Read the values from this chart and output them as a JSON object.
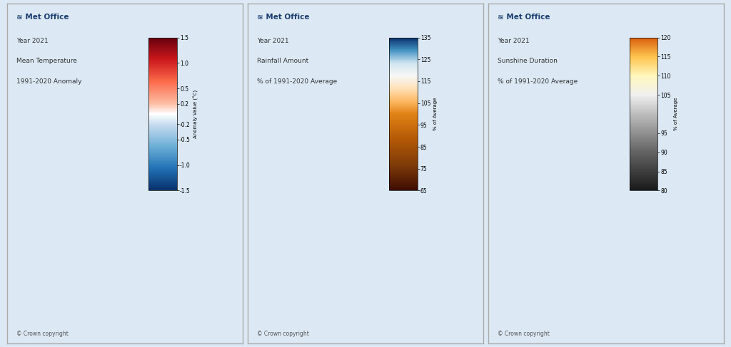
{
  "panels": [
    {
      "title_lines": [
        "Year 2021",
        "Mean Temperature",
        "1991-2020 Anomaly"
      ],
      "colorbar_ticks": [
        1.5,
        1.0,
        0.5,
        0.2,
        -0.2,
        -0.5,
        -1.0,
        -1.5
      ],
      "colorbar_label": "Anomaly Value (°C)",
      "cmap_colors": [
        [
          0,
          "#08306b"
        ],
        [
          0.143,
          "#2171b5"
        ],
        [
          0.286,
          "#6baed6"
        ],
        [
          0.429,
          "#c6dbef"
        ],
        [
          0.5,
          "#ffffff"
        ],
        [
          0.571,
          "#fcbba1"
        ],
        [
          0.714,
          "#fb6a4a"
        ],
        [
          0.857,
          "#cb181d"
        ],
        [
          1.0,
          "#67000d"
        ]
      ],
      "vmin": -1.5,
      "vmax": 1.5,
      "colorbar_extend": "neither"
    },
    {
      "title_lines": [
        "Year 2021",
        "Rainfall Amount",
        "% of 1991-2020 Average"
      ],
      "colorbar_ticks": [
        135,
        125,
        115,
        105,
        95,
        85,
        75,
        65
      ],
      "colorbar_label": "% of Average",
      "cmap_colors": [
        [
          0,
          "#3d0c02"
        ],
        [
          0.167,
          "#7f3b08"
        ],
        [
          0.333,
          "#b35806"
        ],
        [
          0.5,
          "#e08214"
        ],
        [
          0.583,
          "#fdb863"
        ],
        [
          0.667,
          "#fee0b6"
        ],
        [
          0.75,
          "#f7f7f7"
        ],
        [
          0.833,
          "#d1e5f0"
        ],
        [
          0.917,
          "#4393c3"
        ],
        [
          1.0,
          "#08306b"
        ]
      ],
      "vmin": 65,
      "vmax": 135,
      "colorbar_extend": "neither"
    },
    {
      "title_lines": [
        "Year 2021",
        "Sunshine Duration",
        "% of 1991-2020 Average"
      ],
      "colorbar_ticks": [
        120,
        115,
        110,
        105,
        95,
        90,
        85,
        80
      ],
      "colorbar_label": "% of Average",
      "cmap_colors": [
        [
          0,
          "#1a1a1a"
        ],
        [
          0.25,
          "#636363"
        ],
        [
          0.5,
          "#bdbdbd"
        ],
        [
          0.625,
          "#f0f0f0"
        ],
        [
          0.75,
          "#fff7bc"
        ],
        [
          0.875,
          "#fec44f"
        ],
        [
          1.0,
          "#d95f0e"
        ]
      ],
      "vmin": 80,
      "vmax": 120,
      "colorbar_extend": "neither"
    }
  ],
  "background_color": "#dce9f5",
  "panel_bg": "#dce9f5",
  "border_color": "#aaaaaa",
  "copyright_text": "© Crown copyright",
  "met_office_text": "Met Office",
  "logo_color": "#1a3d6e"
}
